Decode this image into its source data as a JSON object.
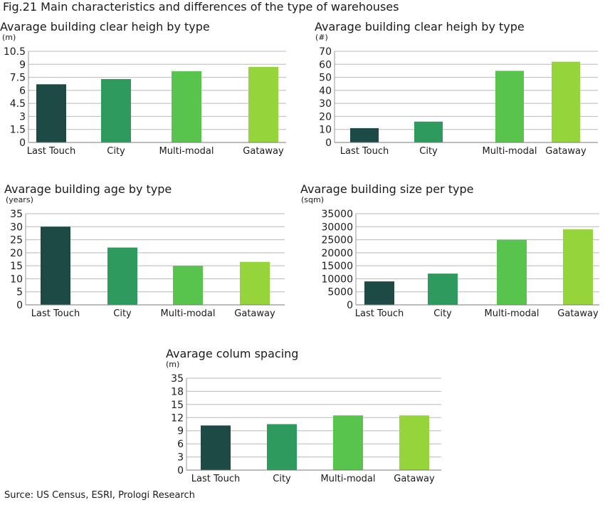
{
  "figure_title": "Fig.21 Main characteristics and differences of the type of warehouses",
  "source": "Surce: US Census, ESRI, Prologi Research",
  "colors": [
    "#1e4a45",
    "#2e9a5e",
    "#58c44e",
    "#96d43c"
  ],
  "chart_data": [
    {
      "type": "bar",
      "title": "Avarage building clear heigh by type",
      "ylabel": "(m)",
      "categories": [
        "Last Touch",
        "City",
        "Multi-modal",
        "Gataway"
      ],
      "values": [
        6.7,
        7.3,
        8.2,
        8.7
      ],
      "yticks": [
        "0",
        "1.5",
        "3",
        "4.5",
        "6",
        "7.5",
        "9",
        "10.5"
      ],
      "ylim": [
        0,
        10.5
      ],
      "grid": true,
      "legend": "none"
    },
    {
      "type": "bar",
      "title": "Avarage building clear heigh by type",
      "ylabel": "(#)",
      "categories": [
        "Last Touch",
        "City",
        "Multi-modal",
        "Gataway"
      ],
      "values": [
        11,
        16,
        55,
        62
      ],
      "yticks": [
        "0",
        "10",
        "20",
        "30",
        "40",
        "50",
        "60",
        "70"
      ],
      "ylim": [
        0,
        70
      ],
      "grid": true,
      "legend": "none"
    },
    {
      "type": "bar",
      "title": "Avarage building age by type",
      "ylabel": "(years)",
      "categories": [
        "Last Touch",
        "City",
        "Multi-modal",
        "Gataway"
      ],
      "values": [
        30,
        22,
        15,
        16.5
      ],
      "yticks": [
        "0",
        "5",
        "10",
        "15",
        "20",
        "25",
        "30",
        "35"
      ],
      "ylim": [
        0,
        35
      ],
      "grid": true,
      "legend": "none"
    },
    {
      "type": "bar",
      "title": "Avarage building size per type",
      "ylabel": "(sqm)",
      "categories": [
        "Last Touch",
        "City",
        "Multi-modal",
        "Gataway"
      ],
      "values": [
        9000,
        12000,
        25000,
        29000
      ],
      "yticks": [
        "0",
        "5000",
        "10000",
        "15000",
        "20000",
        "25000",
        "30000",
        "35000"
      ],
      "ylim": [
        0,
        35000
      ],
      "grid": true,
      "legend": "none"
    },
    {
      "type": "bar",
      "title": "Avarage colum spacing",
      "ylabel": "(m)",
      "categories": [
        "Last Touch",
        "City",
        "Multi-modal",
        "Gataway"
      ],
      "values": [
        10.2,
        10.5,
        12.5,
        12.5
      ],
      "yticks": [
        "0",
        "3",
        "6",
        "9",
        "12",
        "15",
        "18",
        "35"
      ],
      "tick_values": [
        0,
        3,
        6,
        9,
        12,
        15,
        18,
        35
      ],
      "grid": true,
      "legend": "none"
    }
  ]
}
